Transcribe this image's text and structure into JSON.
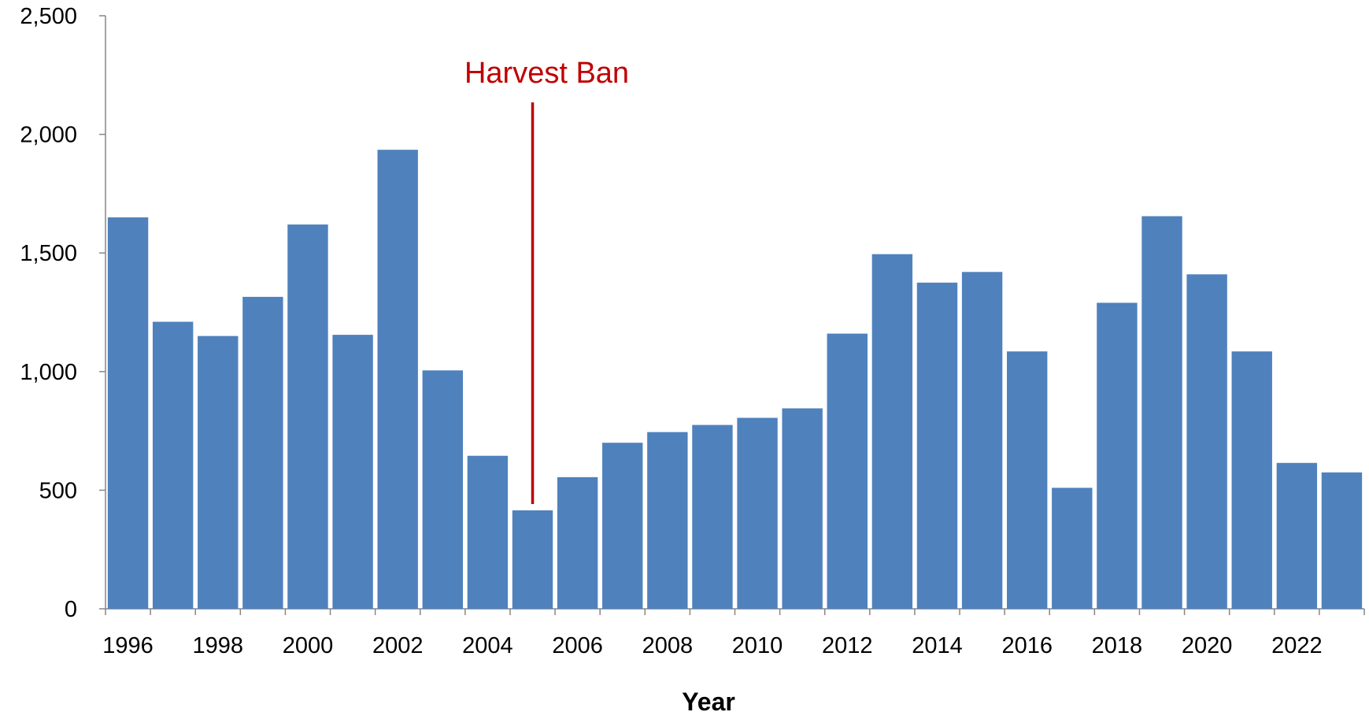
{
  "chart_data": {
    "type": "bar",
    "title": "",
    "xlabel": "Year",
    "ylabel": "",
    "ylim": [
      0,
      2500
    ],
    "yticks": [
      0,
      500,
      1000,
      1500,
      2000,
      2500
    ],
    "ytick_labels": [
      "0",
      "500",
      "1,000",
      "1,500",
      "2,000",
      "2,500"
    ],
    "categories": [
      "1996",
      "1997",
      "1998",
      "1999",
      "2000",
      "2001",
      "2002",
      "2003",
      "2004",
      "2005",
      "2006",
      "2007",
      "2008",
      "2009",
      "2010",
      "2011",
      "2012",
      "2013",
      "2014",
      "2015",
      "2016",
      "2017",
      "2018",
      "2019",
      "2020",
      "2021",
      "2022",
      "2023"
    ],
    "xtick_labels_shown": [
      "1996",
      "1998",
      "2000",
      "2002",
      "2004",
      "2006",
      "2008",
      "2010",
      "2012",
      "2014",
      "2016",
      "2018",
      "2020",
      "2022"
    ],
    "values": [
      1650,
      1210,
      1150,
      1315,
      1620,
      1155,
      1935,
      1005,
      645,
      415,
      555,
      700,
      745,
      775,
      805,
      845,
      1160,
      1495,
      1375,
      1420,
      1085,
      510,
      1290,
      1655,
      1410,
      1085,
      615,
      575
    ],
    "bar_color": "#4F81BD",
    "grid": false,
    "legend": "none",
    "annotations": [
      {
        "text": "Harvest Ban",
        "at_category": "2005",
        "color": "#C00000"
      }
    ]
  }
}
